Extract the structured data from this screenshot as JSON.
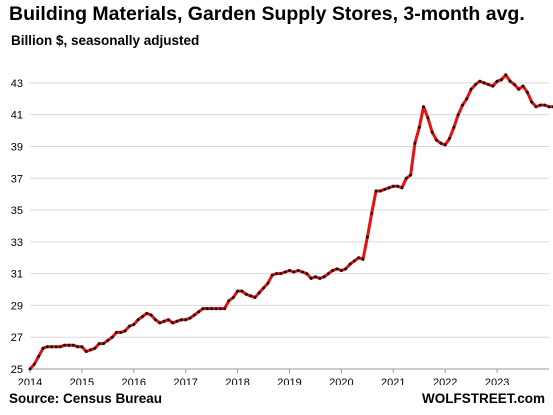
{
  "chart_data": {
    "type": "line",
    "title": "Building Materials, Garden Supply Stores, 3-month avg.",
    "subtitle": "Billion $, seasonally adjusted",
    "xlabel": "",
    "ylabel": "",
    "x_start": "2014-01",
    "x_step": "month",
    "xlim": [
      "2014-01",
      "2023-12"
    ],
    "ylim": [
      25,
      44
    ],
    "x_ticks": [
      "2014",
      "2015",
      "2016",
      "2017",
      "2018",
      "2019",
      "2020",
      "2021",
      "2022",
      "2023"
    ],
    "y_ticks": [
      25,
      27,
      29,
      31,
      33,
      35,
      37,
      39,
      41,
      43
    ],
    "grid": "horizontal",
    "legend": "none",
    "series": [
      {
        "line_color": "#e81010",
        "marker_color": "#111111",
        "values": [
          25.0,
          25.3,
          25.8,
          26.3,
          26.4,
          26.4,
          26.4,
          26.4,
          26.5,
          26.5,
          26.5,
          26.4,
          26.4,
          26.1,
          26.2,
          26.3,
          26.6,
          26.6,
          26.8,
          27.0,
          27.3,
          27.3,
          27.4,
          27.7,
          27.8,
          28.1,
          28.3,
          28.5,
          28.4,
          28.1,
          27.9,
          28.0,
          28.1,
          27.9,
          28.0,
          28.1,
          28.1,
          28.2,
          28.4,
          28.6,
          28.8,
          28.8,
          28.8,
          28.8,
          28.8,
          28.8,
          29.3,
          29.5,
          29.9,
          29.9,
          29.7,
          29.6,
          29.5,
          29.8,
          30.1,
          30.4,
          30.9,
          31.0,
          31.0,
          31.1,
          31.2,
          31.1,
          31.2,
          31.1,
          31.0,
          30.7,
          30.8,
          30.7,
          30.8,
          31.0,
          31.2,
          31.3,
          31.2,
          31.3,
          31.6,
          31.8,
          32.0,
          31.9,
          33.3,
          34.8,
          36.2,
          36.2,
          36.3,
          36.4,
          36.5,
          36.5,
          36.4,
          37.0,
          37.2,
          39.2,
          40.2,
          41.5,
          40.8,
          39.9,
          39.4,
          39.2,
          39.1,
          39.5,
          40.2,
          41.0,
          41.6,
          42.0,
          42.6,
          42.9,
          43.1,
          43.0,
          42.9,
          42.8,
          43.1,
          43.2,
          43.5,
          43.1,
          42.9,
          42.6,
          42.8,
          42.4,
          41.8,
          41.5,
          41.6,
          41.6,
          41.5,
          41.5
        ]
      }
    ]
  },
  "footer": {
    "source": "Source: Census Bureau",
    "brand": "WOLFSTREET.com"
  }
}
